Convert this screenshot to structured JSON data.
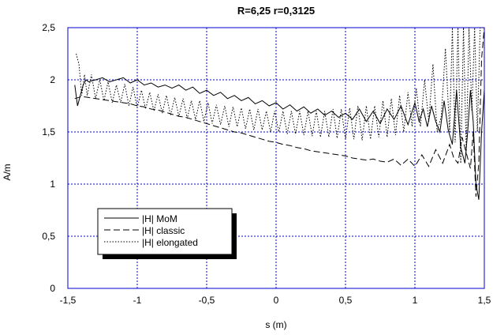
{
  "chart_data": {
    "type": "line",
    "title": "R=6,25 r=0,3125",
    "xlabel": "s (m)",
    "ylabel": "A/m",
    "xlim": [
      -1.5,
      1.5
    ],
    "ylim": [
      0,
      2.5
    ],
    "grid": true,
    "grid_color": "#0000cc",
    "frame_color": "#0000cc",
    "legend_position": "lower-left",
    "x_ticks": [
      "-1,5",
      "-1",
      "-0,5",
      "0",
      "0,5",
      "1",
      "1,5"
    ],
    "y_ticks": [
      "0",
      "0,5",
      "1",
      "1,5",
      "2",
      "2,5"
    ],
    "series": [
      {
        "name": "|H| MoM",
        "style": "solid",
        "color": "#000000",
        "x": [
          -1.45,
          -1.43,
          -1.41,
          -1.39,
          -1.37,
          -1.35,
          -1.3,
          -1.25,
          -1.2,
          -1.15,
          -1.1,
          -1.05,
          -1.0,
          -0.95,
          -0.9,
          -0.85,
          -0.8,
          -0.75,
          -0.7,
          -0.65,
          -0.6,
          -0.55,
          -0.5,
          -0.45,
          -0.4,
          -0.35,
          -0.3,
          -0.25,
          -0.2,
          -0.15,
          -0.1,
          -0.05,
          0.0,
          0.05,
          0.1,
          0.15,
          0.2,
          0.25,
          0.3,
          0.35,
          0.4,
          0.45,
          0.5,
          0.55,
          0.6,
          0.65,
          0.7,
          0.75,
          0.8,
          0.85,
          0.9,
          0.95,
          1.0,
          1.03,
          1.06,
          1.09,
          1.12,
          1.15,
          1.18,
          1.21,
          1.24,
          1.27,
          1.3,
          1.33,
          1.36,
          1.38,
          1.4,
          1.42,
          1.44,
          1.46,
          1.48,
          1.5
        ],
        "y": [
          1.95,
          1.75,
          1.85,
          1.95,
          2.0,
          1.98,
          2.0,
          2.02,
          1.98,
          2.0,
          2.02,
          1.97,
          2.0,
          1.95,
          1.97,
          1.93,
          1.95,
          1.92,
          1.95,
          1.9,
          1.93,
          1.87,
          1.9,
          1.85,
          1.88,
          1.82,
          1.85,
          1.8,
          1.83,
          1.77,
          1.8,
          1.75,
          1.78,
          1.72,
          1.76,
          1.7,
          1.74,
          1.68,
          1.72,
          1.66,
          1.7,
          1.64,
          1.68,
          1.62,
          1.72,
          1.6,
          1.7,
          1.58,
          1.72,
          1.62,
          1.75,
          1.57,
          1.78,
          1.6,
          1.72,
          1.55,
          1.75,
          1.6,
          1.5,
          1.8,
          1.52,
          1.38,
          1.9,
          1.35,
          1.2,
          1.5,
          1.9,
          1.6,
          1.0,
          0.85,
          1.5,
          1.9
        ]
      },
      {
        "name": "|H| classic",
        "style": "dashed",
        "color": "#000000",
        "x": [
          -1.45,
          -1.4,
          -1.35,
          -1.3,
          -1.25,
          -1.2,
          -1.15,
          -1.1,
          -1.05,
          -1.0,
          -0.95,
          -0.9,
          -0.85,
          -0.8,
          -0.75,
          -0.7,
          -0.65,
          -0.6,
          -0.55,
          -0.5,
          -0.45,
          -0.4,
          -0.35,
          -0.3,
          -0.25,
          -0.2,
          -0.15,
          -0.1,
          -0.05,
          0.0,
          0.05,
          0.1,
          0.15,
          0.2,
          0.25,
          0.3,
          0.35,
          0.4,
          0.45,
          0.5,
          0.55,
          0.6,
          0.65,
          0.7,
          0.75,
          0.8,
          0.85,
          0.9,
          0.95,
          1.0,
          1.05,
          1.1,
          1.15,
          1.2,
          1.25,
          1.28,
          1.31,
          1.34,
          1.37,
          1.4,
          1.42,
          1.44,
          1.46,
          1.48,
          1.5
        ],
        "y": [
          1.82,
          1.84,
          1.83,
          1.82,
          1.81,
          1.8,
          1.79,
          1.78,
          1.77,
          1.75,
          1.74,
          1.72,
          1.71,
          1.69,
          1.67,
          1.65,
          1.64,
          1.62,
          1.6,
          1.58,
          1.56,
          1.54,
          1.52,
          1.5,
          1.49,
          1.47,
          1.45,
          1.43,
          1.41,
          1.4,
          1.38,
          1.37,
          1.35,
          1.34,
          1.32,
          1.31,
          1.3,
          1.29,
          1.28,
          1.27,
          1.25,
          1.24,
          1.23,
          1.24,
          1.22,
          1.21,
          1.24,
          1.18,
          1.24,
          1.17,
          1.28,
          1.17,
          1.33,
          1.2,
          1.38,
          1.25,
          1.2,
          1.45,
          1.3,
          1.15,
          1.5,
          0.88,
          1.2,
          2.2,
          2.5
        ]
      },
      {
        "name": "|H| elongated",
        "style": "dotted",
        "color": "#000000",
        "x": [
          -1.44,
          -1.42,
          -1.4,
          -1.38,
          -1.36,
          -1.33,
          -1.3,
          -1.27,
          -1.24,
          -1.21,
          -1.18,
          -1.15,
          -1.12,
          -1.09,
          -1.06,
          -1.03,
          -1.0,
          -0.97,
          -0.94,
          -0.91,
          -0.88,
          -0.85,
          -0.82,
          -0.79,
          -0.76,
          -0.73,
          -0.7,
          -0.67,
          -0.64,
          -0.61,
          -0.58,
          -0.55,
          -0.52,
          -0.49,
          -0.46,
          -0.43,
          -0.4,
          -0.37,
          -0.34,
          -0.31,
          -0.28,
          -0.25,
          -0.22,
          -0.19,
          -0.16,
          -0.13,
          -0.1,
          -0.07,
          -0.04,
          -0.01,
          0.02,
          0.05,
          0.08,
          0.11,
          0.14,
          0.17,
          0.2,
          0.23,
          0.26,
          0.29,
          0.32,
          0.35,
          0.38,
          0.41,
          0.44,
          0.47,
          0.5,
          0.53,
          0.56,
          0.59,
          0.62,
          0.65,
          0.68,
          0.71,
          0.74,
          0.77,
          0.8,
          0.83,
          0.86,
          0.89,
          0.92,
          0.95,
          0.98,
          1.01,
          1.04,
          1.07,
          1.1,
          1.13,
          1.16,
          1.19,
          1.22,
          1.25,
          1.27,
          1.29,
          1.31,
          1.33,
          1.35,
          1.37,
          1.39,
          1.41,
          1.43,
          1.45,
          1.47,
          1.5
        ],
        "y": [
          2.25,
          2.15,
          1.85,
          2.05,
          1.85,
          2.05,
          1.82,
          2.0,
          1.8,
          1.98,
          1.78,
          1.95,
          1.78,
          1.96,
          1.75,
          1.93,
          1.73,
          1.9,
          1.72,
          1.88,
          1.7,
          1.86,
          1.68,
          1.85,
          1.66,
          1.83,
          1.65,
          1.82,
          1.63,
          1.8,
          1.62,
          1.8,
          1.6,
          1.78,
          1.58,
          1.76,
          1.57,
          1.75,
          1.55,
          1.74,
          1.55,
          1.73,
          1.53,
          1.72,
          1.52,
          1.72,
          1.52,
          1.7,
          1.5,
          1.7,
          1.5,
          1.7,
          1.48,
          1.7,
          1.48,
          1.7,
          1.47,
          1.7,
          1.46,
          1.7,
          1.45,
          1.7,
          1.45,
          1.72,
          1.44,
          1.72,
          1.43,
          1.73,
          1.43,
          1.75,
          1.42,
          1.75,
          1.43,
          1.75,
          1.45,
          1.8,
          1.45,
          1.82,
          1.47,
          1.85,
          1.5,
          1.88,
          1.55,
          1.92,
          1.55,
          2.0,
          1.6,
          2.15,
          1.5,
          1.65,
          2.3,
          1.5,
          2.5,
          1.4,
          2.5,
          1.2,
          2.5,
          1.3,
          2.5,
          1.7,
          2.5,
          1.5,
          2.5,
          2.5
        ]
      }
    ]
  }
}
